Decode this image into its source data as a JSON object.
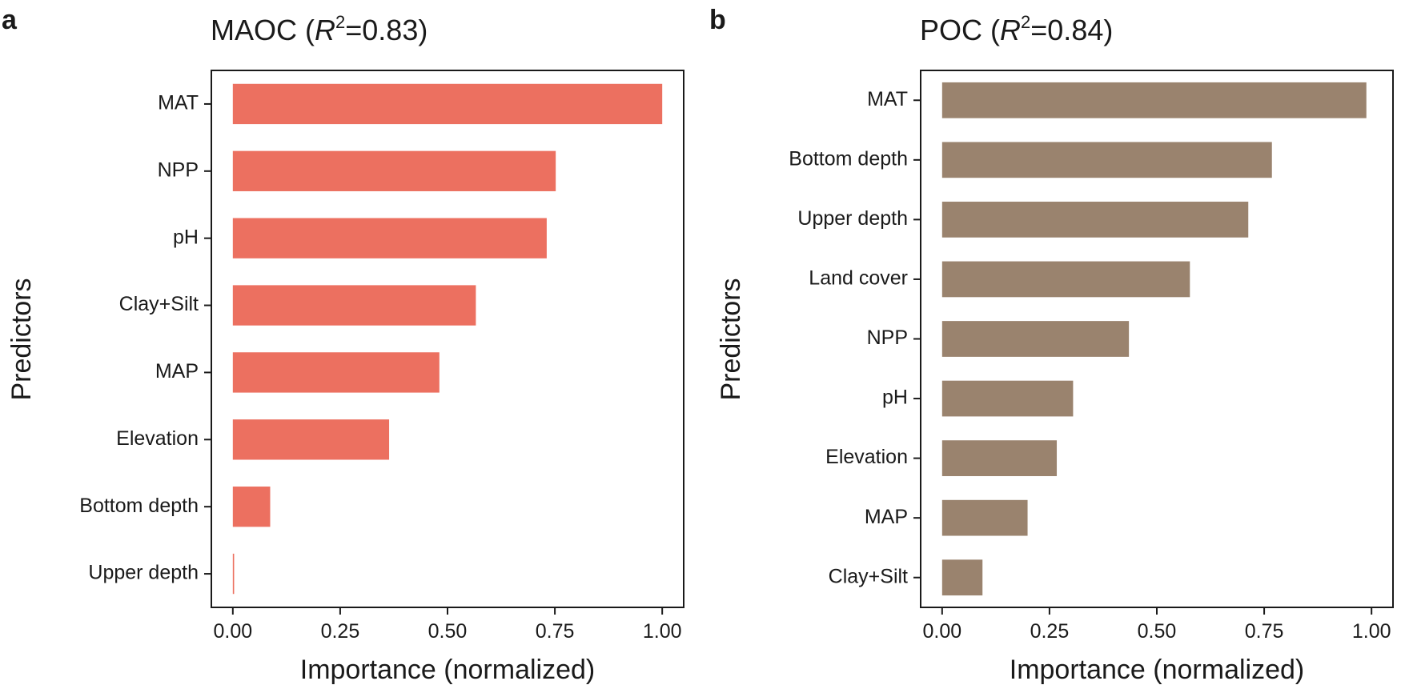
{
  "chart_data": [
    {
      "type": "bar",
      "orientation": "horizontal",
      "panel": "a",
      "title_prefix": "MAOC (",
      "title_r": "R",
      "title_sup": "2",
      "title_suffix": "=0.83)",
      "categories": [
        "MAT",
        "NPP",
        "pH",
        "Clay+Silt",
        "MAP",
        "Elevation",
        "Bottom depth",
        "Upper depth"
      ],
      "values": [
        1.0,
        0.752,
        0.731,
        0.566,
        0.481,
        0.364,
        0.087,
        0.003
      ],
      "xlabel": "Importance (normalized)",
      "ylabel": "Predictors",
      "xlim": [
        -0.05,
        1.05
      ],
      "xticks": [
        "0.00",
        "0.25",
        "0.50",
        "0.75",
        "1.00"
      ],
      "xtick_values": [
        0,
        0.25,
        0.5,
        0.75,
        1.0
      ],
      "color": "#ec7060",
      "grid": false
    },
    {
      "type": "bar",
      "orientation": "horizontal",
      "panel": "b",
      "title_prefix": "POC (",
      "title_r": "R",
      "title_sup": "2",
      "title_suffix": "=0.84)",
      "categories": [
        "MAT",
        "Bottom depth",
        "Upper depth",
        "Land cover",
        "NPP",
        "pH",
        "Elevation",
        "MAP",
        "Clay+Silt"
      ],
      "values": [
        0.988,
        0.768,
        0.713,
        0.577,
        0.435,
        0.305,
        0.267,
        0.199,
        0.094
      ],
      "xlabel": "Importance (normalized)",
      "ylabel": "Predictors",
      "xlim": [
        -0.05,
        1.05
      ],
      "xticks": [
        "0.00",
        "0.25",
        "0.50",
        "0.75",
        "1.00"
      ],
      "xtick_values": [
        0,
        0.25,
        0.5,
        0.75,
        1.0
      ],
      "color": "#9a836e",
      "grid": false
    }
  ]
}
